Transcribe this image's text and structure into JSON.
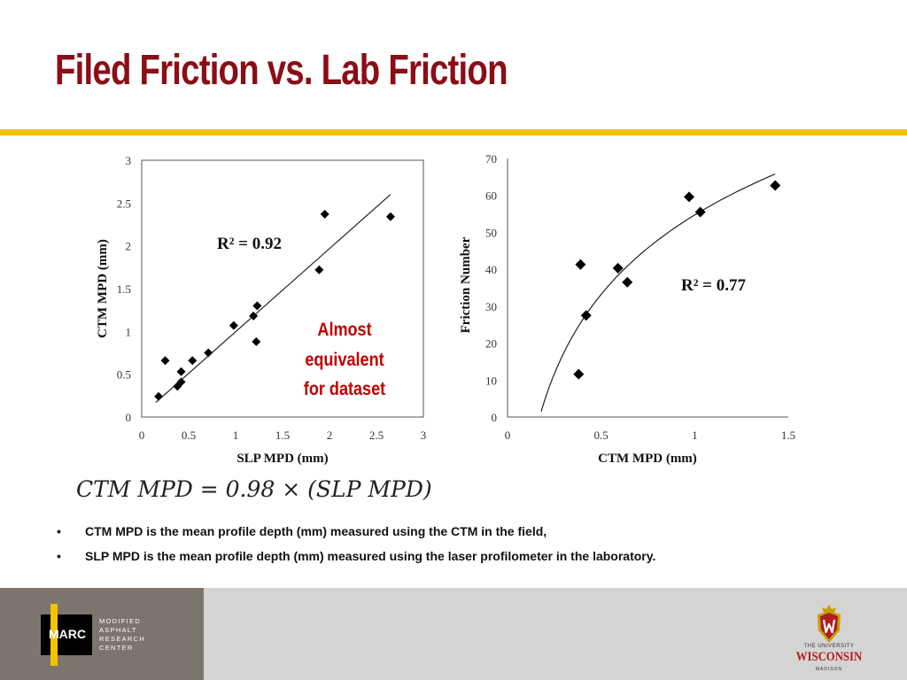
{
  "title": "Filed Friction vs. Lab Friction",
  "colors": {
    "title": "#8b0d16",
    "gold": "#f2c300",
    "annotation": "#c00000",
    "footer_left": "#7c756e",
    "footer_right": "#d5d4d3"
  },
  "chart_data": [
    {
      "type": "scatter",
      "xlabel": "SLP MPD (mm)",
      "ylabel": "CTM MPD (mm)",
      "xlim": [
        0,
        3
      ],
      "ylim": [
        0,
        3
      ],
      "xticks": [
        "0",
        "0.5",
        "1",
        "1.5",
        "2",
        "2.5",
        "3"
      ],
      "yticks": [
        "0",
        "0.5",
        "1",
        "1.5",
        "2",
        "2.5",
        "3"
      ],
      "points": [
        {
          "x": 0.18,
          "y": 0.24
        },
        {
          "x": 0.25,
          "y": 0.66
        },
        {
          "x": 0.38,
          "y": 0.36
        },
        {
          "x": 0.42,
          "y": 0.41
        },
        {
          "x": 0.42,
          "y": 0.53
        },
        {
          "x": 0.54,
          "y": 0.66
        },
        {
          "x": 0.71,
          "y": 0.75
        },
        {
          "x": 0.98,
          "y": 1.07
        },
        {
          "x": 1.19,
          "y": 1.18
        },
        {
          "x": 1.23,
          "y": 1.3
        },
        {
          "x": 1.22,
          "y": 0.88
        },
        {
          "x": 1.89,
          "y": 1.72
        },
        {
          "x": 1.95,
          "y": 2.37
        },
        {
          "x": 2.65,
          "y": 2.34
        }
      ],
      "trendline": {
        "x": [
          0.15,
          2.65
        ],
        "y": [
          0.17,
          2.6
        ]
      },
      "r2_label": "R² = 0.92",
      "annotation": [
        "Almost",
        "equivalent",
        "for dataset"
      ]
    },
    {
      "type": "scatter",
      "xlabel": "CTM MPD (mm)",
      "ylabel": "Friction Number",
      "xlim": [
        0,
        1.5
      ],
      "ylim": [
        0,
        70
      ],
      "xticks": [
        "0",
        "0.5",
        "1",
        "1.5"
      ],
      "yticks": [
        "0",
        "10",
        "20",
        "30",
        "40",
        "50",
        "60",
        "70"
      ],
      "points": [
        {
          "x": 0.38,
          "y": 11.6
        },
        {
          "x": 0.39,
          "y": 41.3
        },
        {
          "x": 0.42,
          "y": 27.5
        },
        {
          "x": 0.59,
          "y": 40.3
        },
        {
          "x": 0.64,
          "y": 36.5
        },
        {
          "x": 0.97,
          "y": 59.6
        },
        {
          "x": 1.03,
          "y": 55.5
        },
        {
          "x": 1.43,
          "y": 62.7
        }
      ],
      "trendline_type": "logarithmic",
      "trendline_range": [
        0.18,
        1.43
      ],
      "r2_label": "R² = 0.77"
    }
  ],
  "formula": "CTM MPD = 0.98 × (SLP MPD)",
  "bullets": [
    {
      "marker": "•",
      "text": "CTM MPD is the mean profile depth (mm) measured using the CTM in the field,"
    },
    {
      "marker": "•",
      "text": "SLP MPD is the mean profile depth (mm) measured using the laser profilometer in the laboratory."
    }
  ],
  "footer": {
    "marc_logo_text": "MARC",
    "marc_words": [
      "MODIFIED",
      "ASPHALT",
      "RESEARCH",
      "CENTER"
    ],
    "uw_small": "THE UNIVERSITY",
    "uw_big": "WISCONSIN",
    "uw_madison": "MADISON"
  }
}
